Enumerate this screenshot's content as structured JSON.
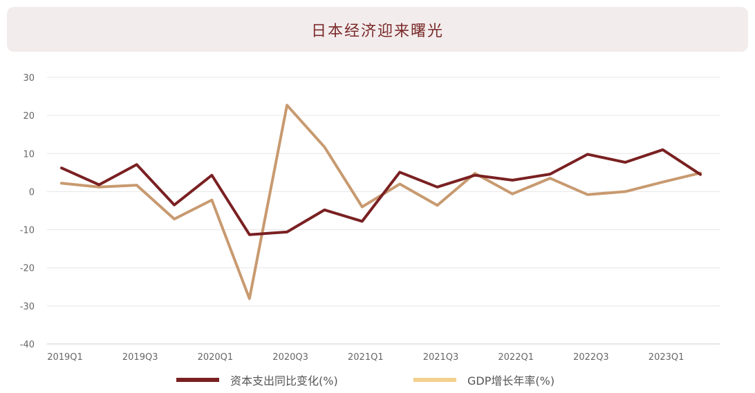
{
  "header": {
    "title": "日本经济迎来曙光"
  },
  "colors": {
    "capex": "#7a2022",
    "gdp": "#c89a70",
    "gdp_legend": "#f3d08e",
    "title_bg": "#f3ecec",
    "title_text": "#7a2a2a"
  },
  "chart_data": {
    "type": "line",
    "title": "日本经济迎来曙光",
    "x": [
      "2019Q1",
      "2019Q2",
      "2019Q3",
      "2019Q4",
      "2020Q1",
      "2020Q2",
      "2020Q3",
      "2020Q4",
      "2021Q1",
      "2021Q2",
      "2021Q3",
      "2021Q4",
      "2022Q1",
      "2022Q2",
      "2022Q3",
      "2022Q4",
      "2023Q1",
      "2023Q2"
    ],
    "x_tick_labels": [
      "2019Q1",
      "",
      "2019Q3",
      "",
      "2020Q1",
      "",
      "2020Q3",
      "",
      "2021Q1",
      "",
      "2021Q3",
      "",
      "2022Q1",
      "",
      "2022Q3",
      "",
      "2023Q1",
      ""
    ],
    "ylim": [
      -40,
      30
    ],
    "yticks": [
      30,
      20,
      10,
      0,
      -10,
      -20,
      -30,
      -40
    ],
    "grid": true,
    "legend_position": "bottom",
    "series": [
      {
        "name": "资本支出同比变化(%)",
        "values": [
          6.2,
          1.8,
          7.1,
          -3.5,
          4.3,
          -11.3,
          -10.6,
          -4.8,
          -7.8,
          5.1,
          1.2,
          4.3,
          3.0,
          4.6,
          9.8,
          7.7,
          11.0,
          4.5
        ]
      },
      {
        "name": "GDP增长年率(%)",
        "values": [
          2.2,
          1.2,
          1.7,
          -7.2,
          -2.2,
          -28.1,
          22.7,
          11.7,
          -4.0,
          2.0,
          -3.6,
          4.8,
          -0.6,
          3.5,
          -0.8,
          0.0,
          2.5,
          4.9
        ]
      }
    ]
  }
}
